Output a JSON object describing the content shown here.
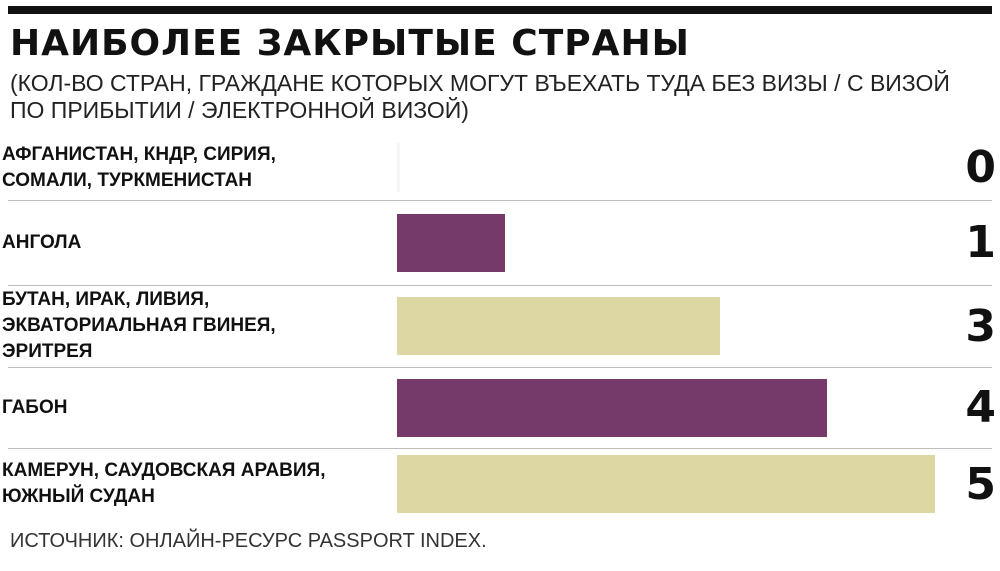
{
  "title": "НАИБОЛЕЕ ЗАКРЫТЫЕ СТРАНЫ",
  "subtitle": "(КОЛ-ВО СТРАН, ГРАЖДАНЕ КОТОРЫХ МОГУТ ВЪЕХАТЬ ТУДА БЕЗ ВИЗЫ / С ВИЗОЙ ПО ПРИБЫТИИ / ЭЛЕКТРОННОЙ ВИЗОЙ)",
  "source": "ИСТОЧНИК: ОНЛАЙН-РЕСУРС PASSPORT INDEX.",
  "chart_data": {
    "type": "bar",
    "orientation": "horizontal",
    "title": "НАИБОЛЕЕ ЗАКРЫТЫЕ СТРАНЫ",
    "categories": [
      [
        "АФГАНИСТАН, КНДР, СИРИЯ,",
        "СОМАЛИ, ТУРКМЕНИСТАН"
      ],
      [
        "АНГОЛА"
      ],
      [
        "БУТАН, ИРАК, ЛИВИЯ,",
        "ЭКВАТОРИАЛЬНАЯ ГВИНЕЯ,",
        "ЭРИТРЕЯ"
      ],
      [
        "ГАБОН"
      ],
      [
        "КАМЕРУН, САУДОВСКАЯ АРАВИЯ,",
        "ЮЖНЫЙ СУДАН"
      ]
    ],
    "values": [
      0,
      1,
      3,
      4,
      5
    ],
    "value_labels": [
      "0",
      "1",
      "3",
      "4",
      "5"
    ],
    "bar_colors": [
      "#f6f6f6",
      "#753a69",
      "#ddd8a3",
      "#753a69",
      "#ddd8a3"
    ],
    "xlim": [
      0,
      5
    ],
    "grid": false,
    "legend": "none"
  }
}
